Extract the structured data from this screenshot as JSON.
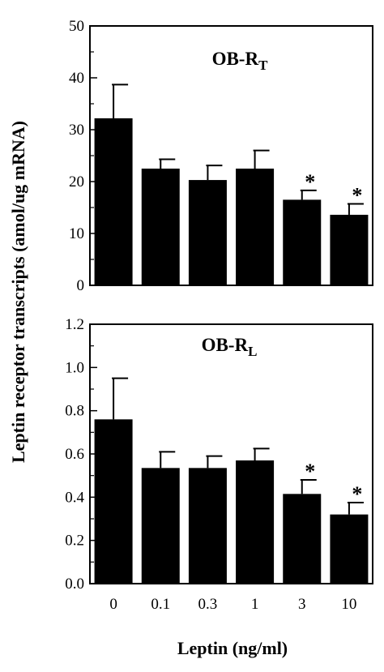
{
  "ylabel": "Leptin receptor transcripts (amol/ug mRNA)",
  "xlabel": "Leptin (ng/ml)",
  "chart_data": [
    {
      "type": "bar",
      "title": "OB-R",
      "title_subscript": "T",
      "categories": [
        "0",
        "0.1",
        "0.3",
        "1",
        "3",
        "10"
      ],
      "values": [
        32.2,
        22.5,
        20.3,
        22.5,
        16.5,
        13.6
      ],
      "error_upper": [
        38.7,
        24.3,
        23.1,
        26.0,
        18.3,
        15.7
      ],
      "significant": [
        false,
        false,
        false,
        false,
        true,
        true
      ],
      "significance_marker": "*",
      "ylim": [
        0,
        50
      ],
      "yticks": [
        "0",
        "10",
        "20",
        "30",
        "40",
        "50"
      ],
      "ytick_values": [
        0,
        10,
        20,
        30,
        40,
        50
      ],
      "bar_color": "#000000"
    },
    {
      "type": "bar",
      "title": "OB-R",
      "title_subscript": "L",
      "categories": [
        "0",
        "0.1",
        "0.3",
        "1",
        "3",
        "10"
      ],
      "values": [
        0.76,
        0.535,
        0.535,
        0.57,
        0.415,
        0.32
      ],
      "error_upper": [
        0.95,
        0.61,
        0.59,
        0.625,
        0.48,
        0.375
      ],
      "significant": [
        false,
        false,
        false,
        false,
        true,
        true
      ],
      "significance_marker": "*",
      "ylim": [
        0,
        1.2
      ],
      "yticks": [
        "0.0",
        "0.2",
        "0.4",
        "0.6",
        "0.8",
        "1.0",
        "1.2"
      ],
      "ytick_values": [
        0,
        0.2,
        0.4,
        0.6,
        0.8,
        1.0,
        1.2
      ],
      "bar_color": "#000000"
    }
  ]
}
